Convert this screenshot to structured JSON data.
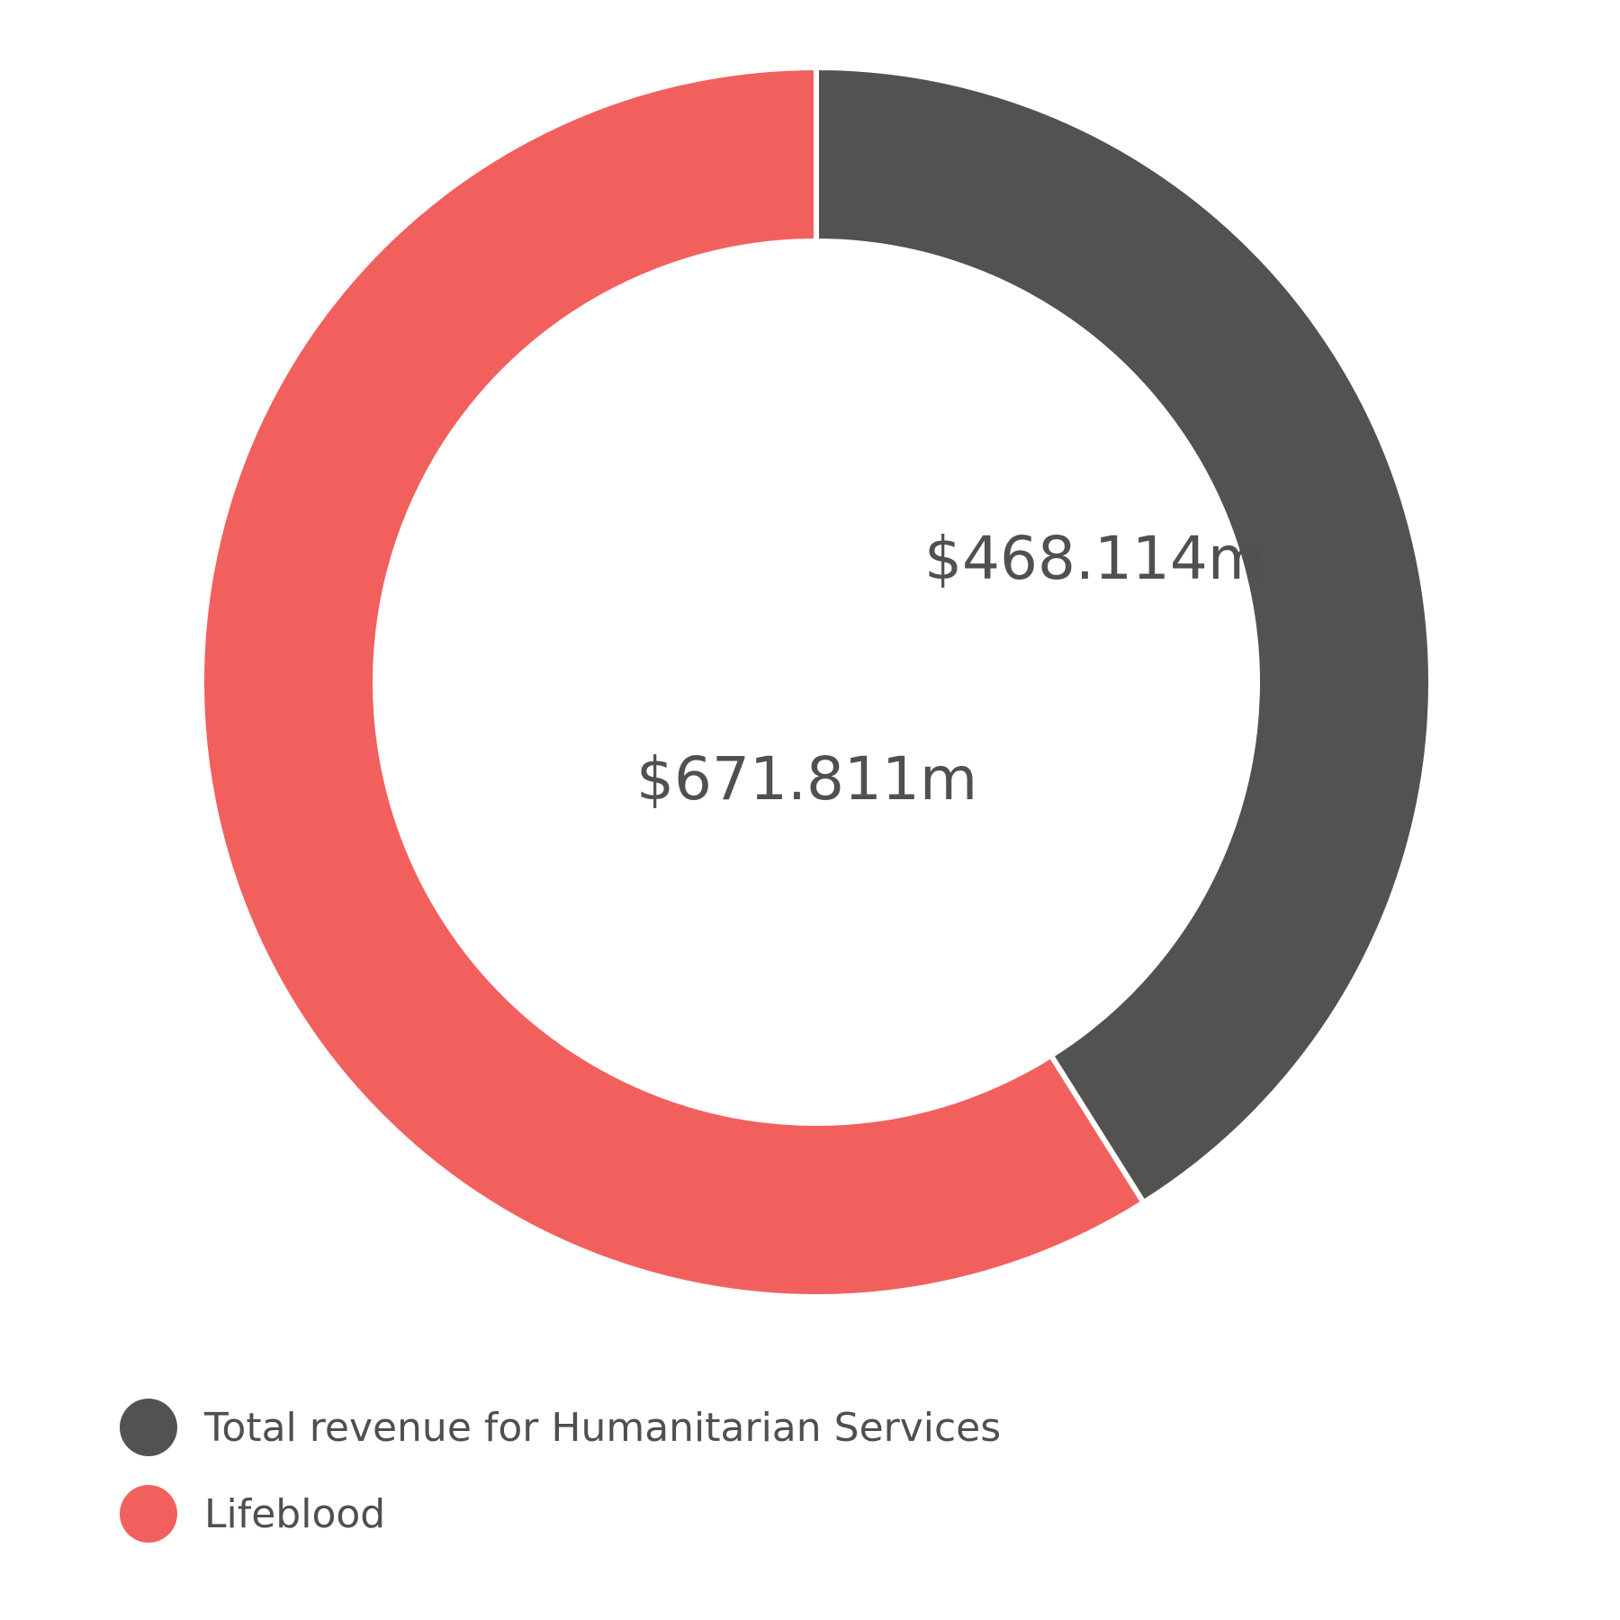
{
  "chart_data": {
    "type": "pie",
    "variant": "donut",
    "title": "",
    "slices": [
      {
        "name": "Total revenue for Humanitarian Services",
        "value": 468.114,
        "label": "$468.114m",
        "color": "#525250"
      },
      {
        "name": "Lifeblood",
        "value": 671.811,
        "label": "$671.811m",
        "color": "#f2605e"
      }
    ],
    "legend_position": "bottom-left"
  }
}
